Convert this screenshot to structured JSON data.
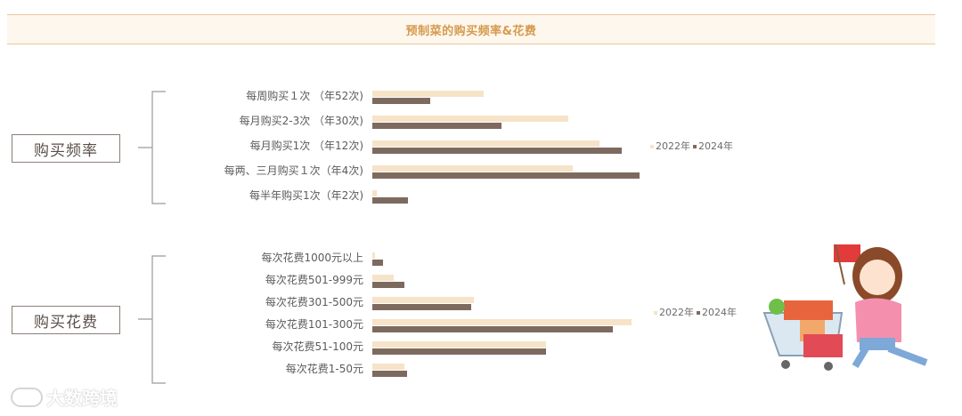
{
  "title": "预制菜的购买频率&花费",
  "watermark": "大数跨境",
  "colors": {
    "y2022": "#f6e3c8",
    "y2024": "#7d6a5f",
    "title": "#d69a4e"
  },
  "chart_data": [
    {
      "type": "bar",
      "section_label": "购买频率",
      "categories": [
        "每周购买１次 （年52次)",
        "每月购买2-3次 （年30次)",
        "每月购买1次 （年12次)",
        "每两、三月购买１次（年4次)",
        "每半年购买1次（年2次)"
      ],
      "series": [
        {
          "name": "2022年",
          "values": [
            25,
            44,
            51,
            45,
            1
          ]
        },
        {
          "name": "2024年",
          "values": [
            13,
            29,
            56,
            60,
            8
          ]
        }
      ],
      "xlim": [
        0,
        60
      ],
      "legend_position": "right"
    },
    {
      "type": "bar",
      "section_label": "购买花费",
      "categories": [
        "每次花费1000元以上",
        "每次花费501-999元",
        "每次花费301-500元",
        "每次花费101-300元",
        "每次花费51-100元",
        "每次花费1-50元"
      ],
      "series": [
        {
          "name": "2022年",
          "values": [
            1,
            8,
            38,
            97,
            65,
            12
          ]
        },
        {
          "name": "2024年",
          "values": [
            4,
            12,
            37,
            90,
            65,
            13
          ]
        }
      ],
      "xlim": [
        0,
        100
      ],
      "legend_position": "right"
    }
  ]
}
